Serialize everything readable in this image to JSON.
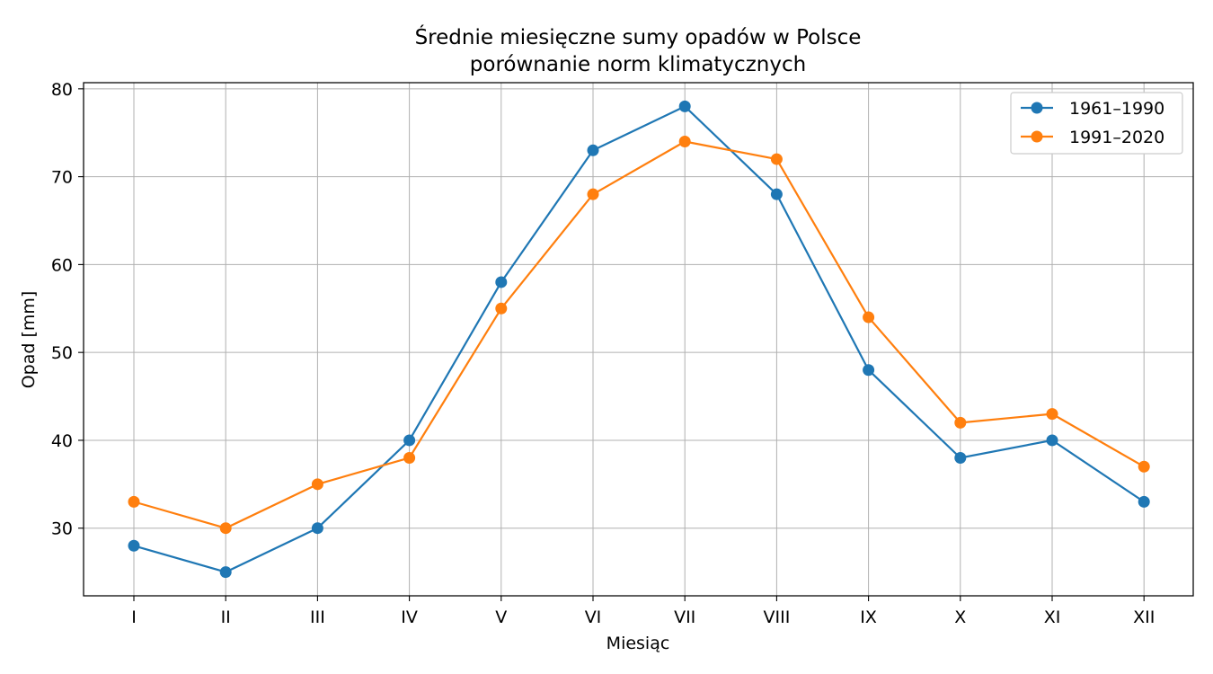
{
  "chart_data": {
    "type": "line",
    "title": "Średnie miesięczne sumy opadów w Polsce",
    "subtitle": "porównanie norm klimatycznych",
    "xlabel": "Miesiąc",
    "ylabel": "Opad [mm]",
    "categories": [
      "I",
      "II",
      "III",
      "IV",
      "V",
      "VI",
      "VII",
      "VIII",
      "IX",
      "X",
      "XI",
      "XII"
    ],
    "ylim": [
      22.3,
      80.7
    ],
    "yticks": [
      30,
      40,
      50,
      60,
      70,
      80
    ],
    "grid": true,
    "legend_position": "top-right",
    "series": [
      {
        "name": "1961–1990",
        "color": "#1f77b4",
        "values": [
          28,
          25,
          30,
          40,
          58,
          73,
          78,
          68,
          48,
          38,
          40,
          33
        ]
      },
      {
        "name": "1991–2020",
        "color": "#ff7f0e",
        "values": [
          33,
          30,
          35,
          38,
          55,
          68,
          74,
          72,
          54,
          42,
          43,
          37
        ]
      }
    ]
  }
}
